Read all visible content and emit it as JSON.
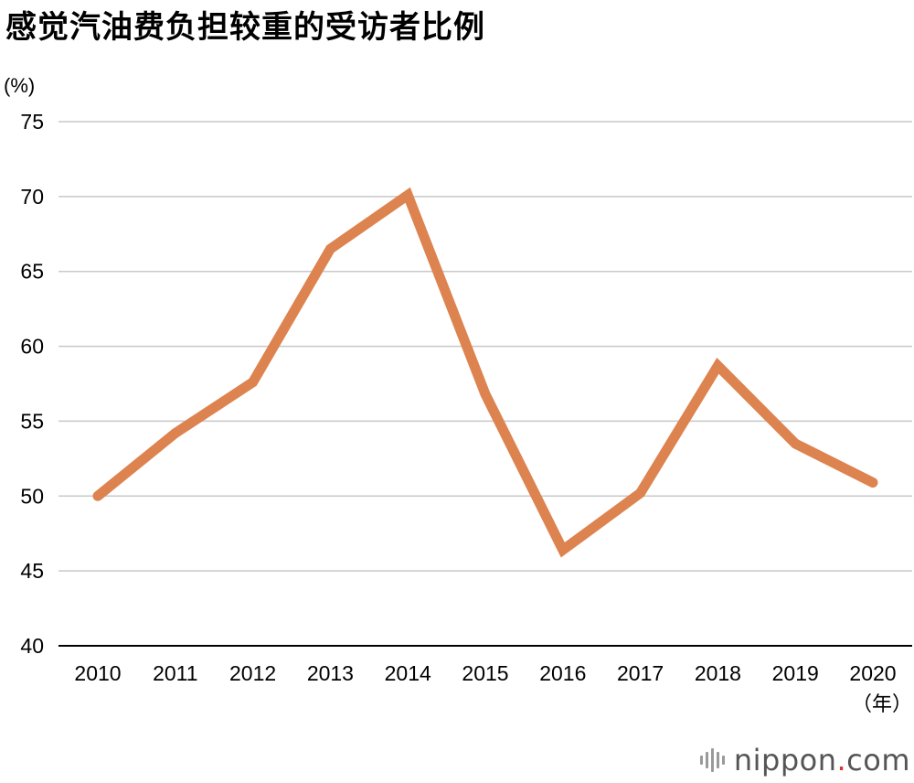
{
  "page": {
    "title": "感觉汽油费负担较重的受访者比例"
  },
  "chart_data": {
    "type": "line",
    "title": "感觉汽油费负担较重的受访者比例",
    "ylabel": "(%)",
    "xlabel": "（年）",
    "ylim": [
      40,
      75
    ],
    "yticks": [
      40,
      45,
      50,
      55,
      60,
      65,
      70,
      75
    ],
    "grid": true,
    "categories": [
      "2010",
      "2011",
      "2012",
      "2013",
      "2014",
      "2015",
      "2016",
      "2017",
      "2018",
      "2019",
      "2020"
    ],
    "series": [
      {
        "name": "感觉汽油费负担较重的受访者比例",
        "color": "#dd8350",
        "values": [
          50.0,
          54.2,
          57.6,
          66.5,
          70.1,
          56.8,
          46.4,
          50.2,
          58.7,
          53.5,
          50.9
        ]
      }
    ]
  },
  "logo": {
    "name": "nippon",
    "dot": ".",
    "suffix": "com"
  }
}
